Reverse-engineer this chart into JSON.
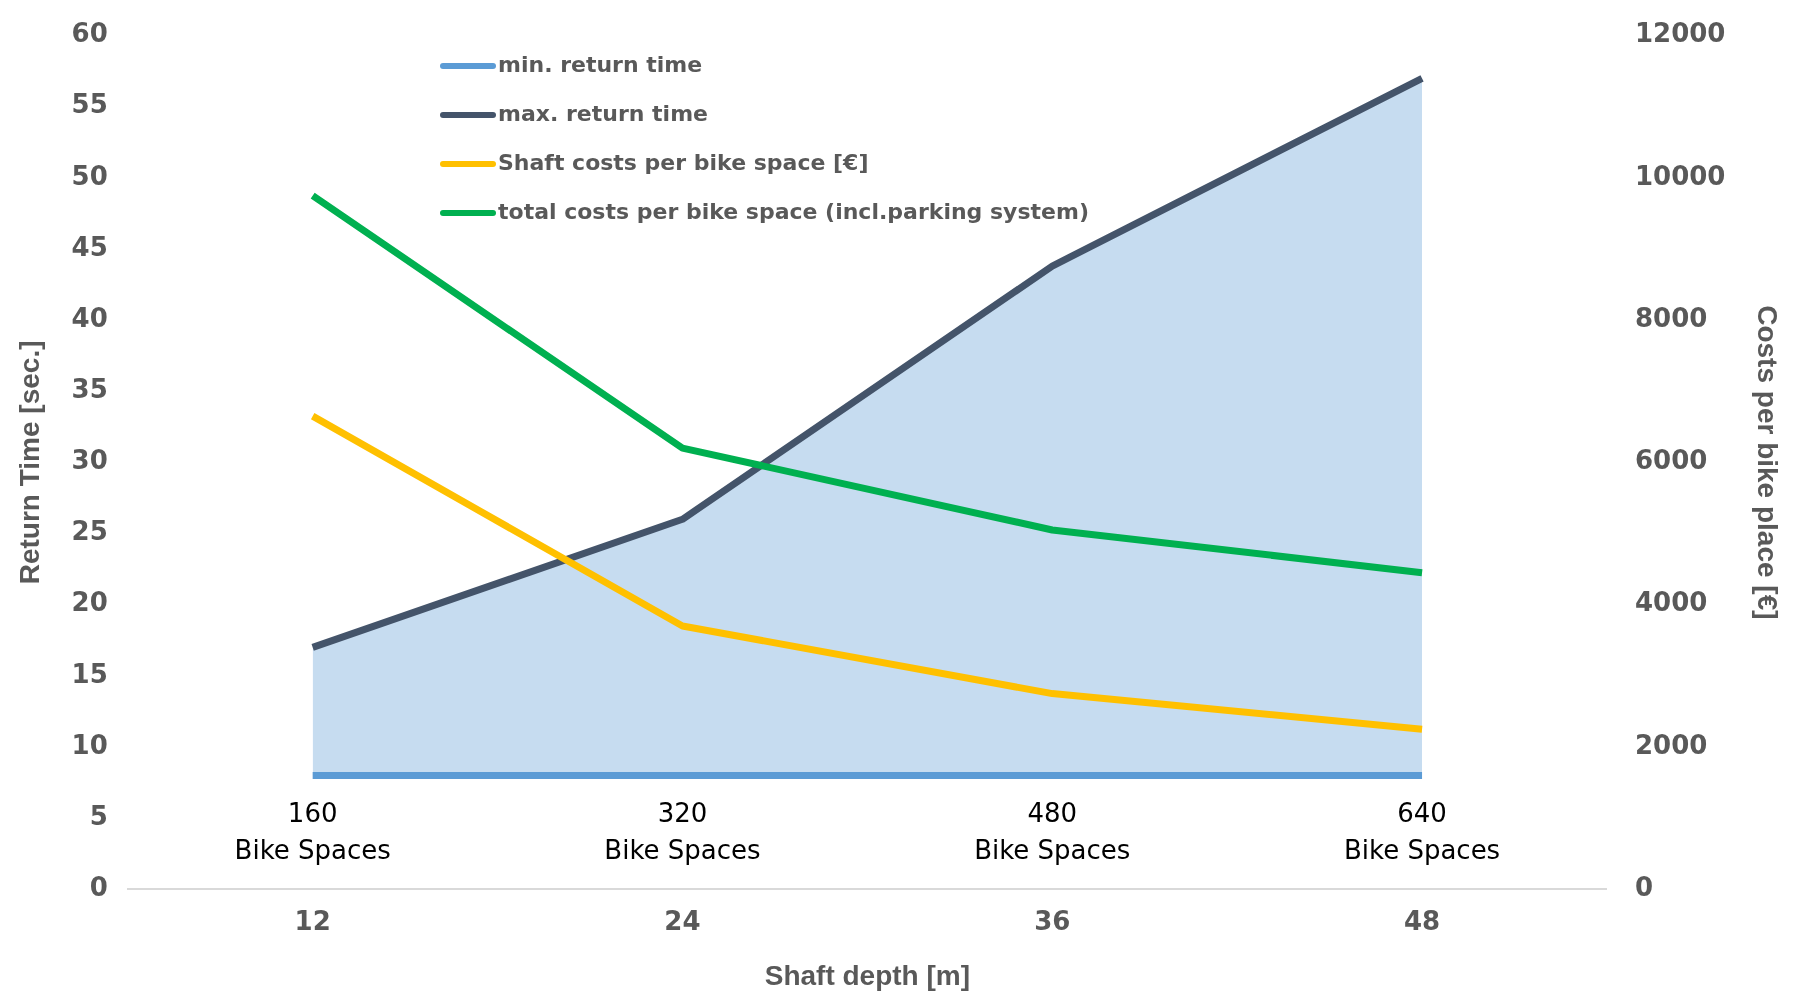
{
  "chart_data": {
    "type": "line",
    "xlabel": "Shaft depth [m]",
    "ylabel": "Return Time [sec.]",
    "y2label": "Costs per bike place [€]",
    "categories": [
      "12",
      "24",
      "36",
      "48"
    ],
    "series": [
      {
        "name": "min. return time",
        "color": "#5b9bd5",
        "values": [
          8,
          8,
          8,
          8
        ]
      },
      {
        "name": "max. return time",
        "type": "area",
        "color": "#44546a",
        "values": [
          17,
          26,
          43.8,
          57
        ]
      },
      {
        "name": "Shaft costs per bike space [€]",
        "color": "#ffc000",
        "axis": "y2",
        "values": [
          6650,
          3700,
          2750,
          2250
        ]
      },
      {
        "name": "total costs per bike space (incl.parking system)",
        "color": "#00b050",
        "axis": "y2",
        "values": [
          9750,
          6200,
          5050,
          4450
        ]
      }
    ],
    "ylim": [
      0,
      60
    ],
    "yticks": [
      0,
      5,
      10,
      15,
      20,
      25,
      30,
      35,
      40,
      45,
      50,
      55,
      60
    ],
    "y2lim": [
      0,
      12000
    ],
    "y2ticks": [
      0,
      2000,
      4000,
      6000,
      8000,
      10000,
      12000
    ],
    "annotations": [
      "160\nBike Spaces",
      "320\nBike Spaces",
      "480\nBike Spaces",
      "640\nBike Spaces"
    ],
    "grid": false,
    "legend": "top left",
    "marker": "none",
    "line_style": "solid"
  }
}
